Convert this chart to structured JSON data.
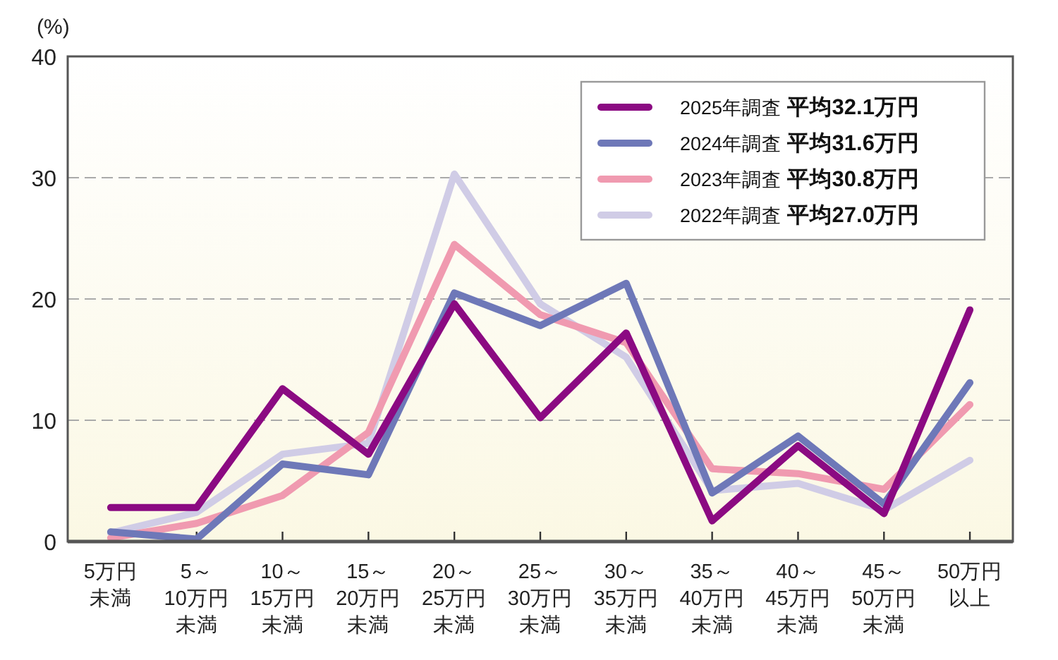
{
  "chart_data": {
    "type": "line",
    "ylabel": "(%)",
    "categories": [
      "5万円未満",
      "5～10万円未満",
      "10～15万円未満",
      "15～20万円未満",
      "20～25万円未満",
      "25～30万円未満",
      "30～35万円未満",
      "35～40万円未満",
      "40～45万円未満",
      "45～50万円未満",
      "50万円以上"
    ],
    "series": [
      {
        "name": "2022年調査 平均27.0万円",
        "color": "#d0cce6",
        "values": [
          0.7,
          2.4,
          7.2,
          8.1,
          30.3,
          19.6,
          15.2,
          4.2,
          4.8,
          2.6,
          6.7
        ]
      },
      {
        "name": "2023年調査 平均30.8万円",
        "color": "#f09ab0",
        "values": [
          0.3,
          1.5,
          3.8,
          9.0,
          24.5,
          18.7,
          16.4,
          6.0,
          5.6,
          4.3,
          11.3
        ]
      },
      {
        "name": "2024年調査 平均31.6万円",
        "color": "#6e78b8",
        "values": [
          0.8,
          0.2,
          6.4,
          5.5,
          20.5,
          17.8,
          21.3,
          4.0,
          8.7,
          3.1,
          13.1
        ]
      },
      {
        "name": "2025年調査 平均32.1万円",
        "color": "#8b0a82",
        "values": [
          2.8,
          2.8,
          12.6,
          7.2,
          19.6,
          10.2,
          17.2,
          1.7,
          7.9,
          2.3,
          19.1
        ]
      }
    ],
    "ylim": [
      0,
      40
    ],
    "yticks": [
      0,
      10,
      20,
      30,
      40
    ],
    "grid": "y",
    "legend": "top right",
    "marker": "none",
    "line_style": "solid"
  }
}
